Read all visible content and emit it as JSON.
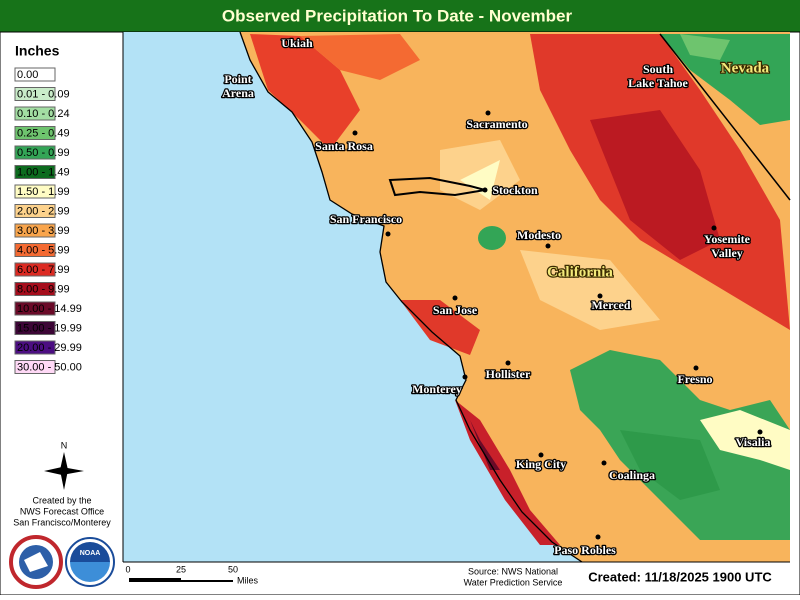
{
  "header": {
    "title": "Observed Precipitation To Date - November"
  },
  "legend": {
    "title": "Inches",
    "items": [
      {
        "label": "0.00",
        "color": "#ffffff"
      },
      {
        "label": "0.01 - 0.09",
        "color": "#c9ecc9"
      },
      {
        "label": "0.10 - 0.24",
        "color": "#a3dea3"
      },
      {
        "label": "0.25 - 0.49",
        "color": "#6ec46e"
      },
      {
        "label": "0.50 - 0.99",
        "color": "#33a556"
      },
      {
        "label": "1.00 - 1.49",
        "color": "#0c6b1e"
      },
      {
        "label": "1.50 - 1.99",
        "color": "#fffcc4"
      },
      {
        "label": "2.00 - 2.99",
        "color": "#fdd28c"
      },
      {
        "label": "3.00 - 3.99",
        "color": "#f9a54c"
      },
      {
        "label": "4.00 - 5.99",
        "color": "#f46a32"
      },
      {
        "label": "6.00 - 7.99",
        "color": "#dc2a22"
      },
      {
        "label": "8.00 - 9.99",
        "color": "#a50d1c"
      },
      {
        "label": "10.00 - 14.99",
        "color": "#6a0a28"
      },
      {
        "label": "15.00 - 19.99",
        "color": "#3c0636"
      },
      {
        "label": "20.00 - 29.99",
        "color": "#4c0e82"
      },
      {
        "label": "30.00 - 50.00",
        "color": "#ffd9f6"
      }
    ]
  },
  "compass": {
    "label": "N"
  },
  "credits": {
    "lines": [
      "Created by the",
      "NWS Forecast Office",
      "San Francisco/Monterey"
    ],
    "logo": "NOAA"
  },
  "map": {
    "states": [
      "Nevada",
      "California"
    ],
    "cities": [
      {
        "lines": [
          "Ukiah"
        ]
      },
      {
        "lines": [
          "Point",
          "Arena"
        ]
      },
      {
        "lines": [
          "Santa Rosa"
        ]
      },
      {
        "lines": [
          "Sacramento"
        ]
      },
      {
        "lines": [
          "Stockton"
        ]
      },
      {
        "lines": [
          "San Francisco"
        ]
      },
      {
        "lines": [
          "Modesto"
        ]
      },
      {
        "lines": [
          "South",
          "Lake Tahoe"
        ]
      },
      {
        "lines": [
          "Yosemite",
          "Valley"
        ]
      },
      {
        "lines": [
          "Merced"
        ]
      },
      {
        "lines": [
          "San Jose"
        ]
      },
      {
        "lines": [
          "Hollister"
        ]
      },
      {
        "lines": [
          "Monterey"
        ]
      },
      {
        "lines": [
          "Fresno"
        ]
      },
      {
        "lines": [
          "Visalia"
        ]
      },
      {
        "lines": [
          "King City"
        ]
      },
      {
        "lines": [
          "Coalinga"
        ]
      },
      {
        "lines": [
          "Paso Robles"
        ]
      }
    ]
  },
  "footer": {
    "scale": [
      "0",
      "25",
      "50"
    ],
    "scale_unit": "Miles",
    "source": [
      "Source: NWS National",
      "Water Prediction Service"
    ],
    "created": "Created: 11/18/2025 1900 UTC"
  }
}
